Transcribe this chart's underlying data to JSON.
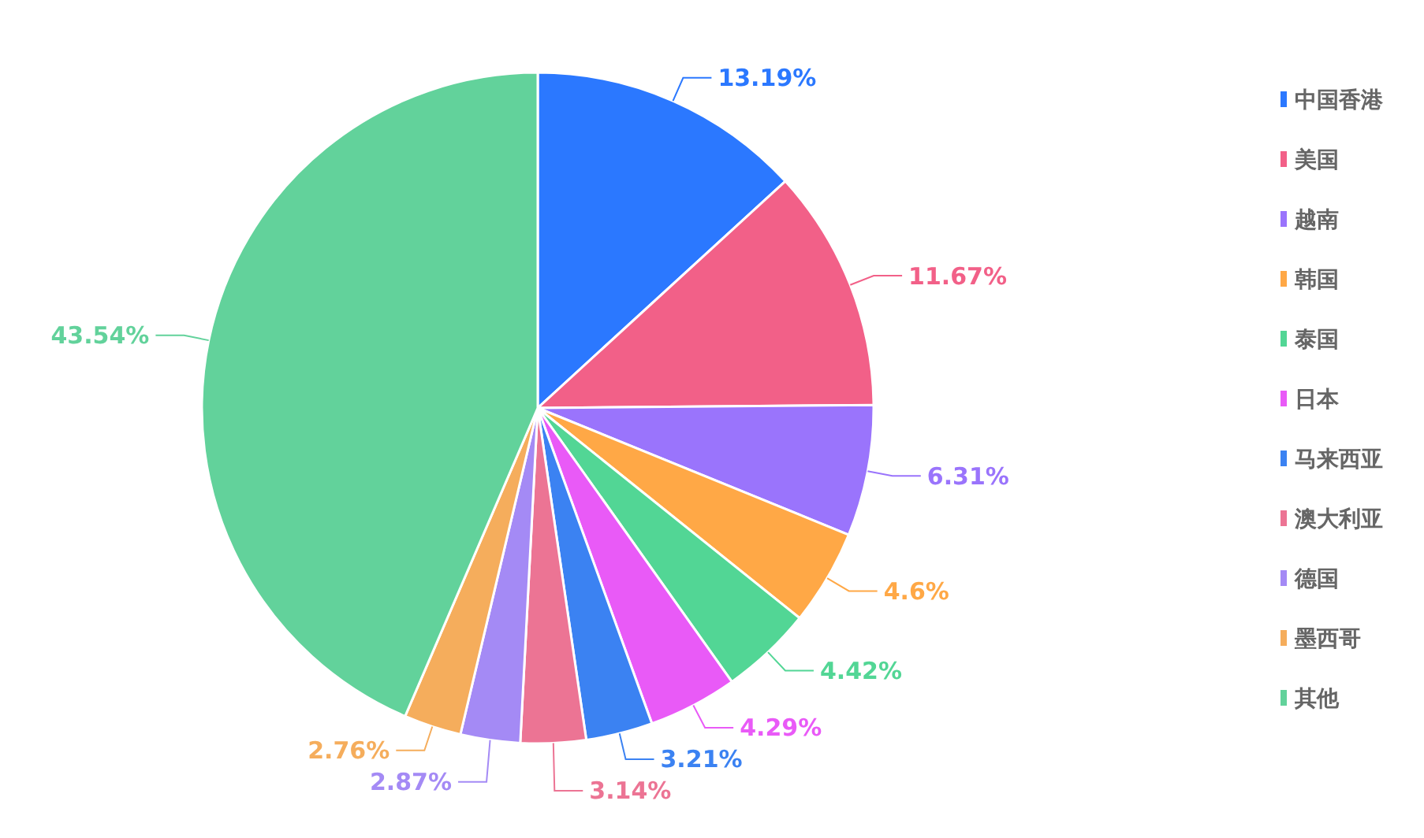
{
  "chart_data": {
    "type": "pie",
    "categories": [
      "中国香港",
      "美国",
      "越南",
      "韩国",
      "泰国",
      "日本",
      "马来西亚",
      "澳大利亚",
      "德国",
      "墨西哥",
      "其他"
    ],
    "values": [
      13.19,
      11.67,
      6.31,
      4.6,
      4.42,
      4.29,
      3.21,
      3.14,
      2.87,
      2.76,
      43.54
    ],
    "colors": [
      "#2b78ff",
      "#f26088",
      "#9a74fc",
      "#ffa846",
      "#52d695",
      "#e95af7",
      "#3b82f2",
      "#ec7494",
      "#a48af5",
      "#f5ad5c",
      "#62d29b"
    ],
    "value_labels": [
      "13.19%",
      "11.67%",
      "6.31%",
      "4.6%",
      "4.42%",
      "4.29%",
      "3.21%",
      "3.14%",
      "2.87%",
      "2.76%",
      "43.54%"
    ],
    "legend": "right"
  }
}
